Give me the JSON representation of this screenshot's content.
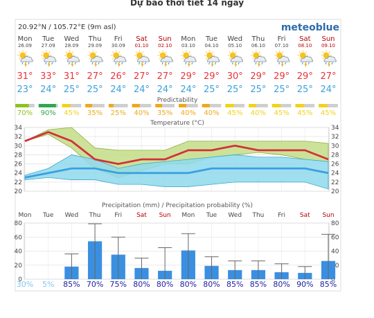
{
  "page_title": "Dự báo thời tiết 14 ngày",
  "location": "20.92°N / 105.72°E (9m asl)",
  "brand": "meteoblue",
  "colors": {
    "weekday": "#444444",
    "weekend": "#b80000",
    "max_temp": "#e8343a",
    "min_temp": "#3aa1db",
    "temp_line": "#d2313a",
    "temp_min_line": "#3a9fe0",
    "predictability_title": "#555555",
    "precip_bar": "#3b8fe0",
    "prob_good": "#1a1aa0",
    "prob_light": "#7fc7ef"
  },
  "days": [
    {
      "name": "Mon",
      "date": "26.09",
      "weekend": false,
      "icon": "sun-cloud-rain-thunder-icon",
      "max": "31°",
      "min": "23°",
      "pred": "70%",
      "pred_color": "#8ec21f"
    },
    {
      "name": "Tue",
      "date": "27.09",
      "weekend": false,
      "icon": "sun-cloud-rain-thunder-icon",
      "max": "33°",
      "min": "24°",
      "pred": "90%",
      "pred_color": "#2fa84f"
    },
    {
      "name": "Wed",
      "date": "28.09",
      "weekend": false,
      "icon": "sun-cloud-rain-thunder-icon",
      "max": "31°",
      "min": "25°",
      "pred": "45%",
      "pred_color": "#f2d21b"
    },
    {
      "name": "Thu",
      "date": "29.09",
      "weekend": false,
      "icon": "sun-cloud-rain-thunder-icon",
      "max": "27°",
      "min": "25°",
      "pred": "35%",
      "pred_color": "#f0a81a"
    },
    {
      "name": "Fri",
      "date": "30.09",
      "weekend": false,
      "icon": "sun-cloud-rain-thunder-icon",
      "max": "26°",
      "min": "24°",
      "pred": "25%",
      "pred_color": "#f0a81a"
    },
    {
      "name": "Sat",
      "date": "01.10",
      "weekend": true,
      "icon": "sun-cloud-rain-thunder-icon",
      "max": "27°",
      "min": "24°",
      "pred": "40%",
      "pred_color": "#f0a81a"
    },
    {
      "name": "Sun",
      "date": "02.10",
      "weekend": true,
      "icon": "sun-cloud-rain-thunder-icon",
      "max": "27°",
      "min": "24°",
      "pred": "35%",
      "pred_color": "#f0a81a"
    },
    {
      "name": "Mon",
      "date": "03.10",
      "weekend": false,
      "icon": "sun-cloud-rain-thunder-icon",
      "max": "29°",
      "min": "24°",
      "pred": "40%",
      "pred_color": "#f0a81a"
    },
    {
      "name": "Tue",
      "date": "04.10",
      "weekend": false,
      "icon": "sun-cloud-rain-thunder-icon",
      "max": "29°",
      "min": "25°",
      "pred": "40%",
      "pred_color": "#f0a81a"
    },
    {
      "name": "Wed",
      "date": "05.10",
      "weekend": false,
      "icon": "sun-cloud-rain-thunder-icon",
      "max": "30°",
      "min": "25°",
      "pred": "45%",
      "pred_color": "#f2d21b"
    },
    {
      "name": "Thu",
      "date": "06.10",
      "weekend": false,
      "icon": "sun-cloud-rain-thunder-icon",
      "max": "29°",
      "min": "25°",
      "pred": "40%",
      "pred_color": "#f2d21b"
    },
    {
      "name": "Fri",
      "date": "07.10",
      "weekend": false,
      "icon": "sun-cloud-rain-thunder-icon",
      "max": "29°",
      "min": "25°",
      "pred": "45%",
      "pred_color": "#f2d21b"
    },
    {
      "name": "Sat",
      "date": "08.10",
      "weekend": true,
      "icon": "sun-cloud-rain-thunder-icon",
      "max": "29°",
      "min": "25°",
      "pred": "45%",
      "pred_color": "#f2d21b"
    },
    {
      "name": "Sun",
      "date": "09.10",
      "weekend": true,
      "icon": "sun-cloud-rain-thunder-icon",
      "max": "27°",
      "min": "24°",
      "pred": "45%",
      "pred_color": "#f2d21b"
    }
  ],
  "chart_data": [
    {
      "type": "bar",
      "title": "Predictability",
      "categories": [
        "26.09",
        "27.09",
        "28.09",
        "29.09",
        "30.09",
        "01.10",
        "02.10",
        "03.10",
        "04.10",
        "05.10",
        "06.10",
        "07.10",
        "08.10",
        "09.10"
      ],
      "values": [
        70,
        90,
        45,
        35,
        25,
        40,
        35,
        40,
        40,
        45,
        40,
        45,
        45,
        45
      ],
      "ylim": [
        0,
        100
      ]
    },
    {
      "type": "area",
      "title": "Temperature (°C)",
      "categories": [
        "Mon",
        "Tue",
        "Wed",
        "Thu",
        "Fri",
        "Sat",
        "Sun",
        "Mon",
        "Tue",
        "Wed",
        "Thu",
        "Fri",
        "Sat",
        "Sun"
      ],
      "ylim": [
        20,
        34
      ],
      "yticks": [
        20,
        22,
        24,
        26,
        28,
        30,
        32,
        34
      ],
      "grid": true,
      "series": [
        {
          "values": [
            31,
            33,
            31,
            27,
            26,
            27,
            27,
            29,
            29,
            30,
            29,
            29,
            29,
            27
          ]
        },
        {
          "values": [
            23,
            24,
            25,
            25,
            24,
            24,
            24,
            24,
            25,
            25,
            25,
            25,
            25,
            24
          ]
        }
      ],
      "max_band": {
        "upper": [
          31,
          33.5,
          34,
          29.5,
          29,
          29,
          29,
          31,
          31,
          31,
          31,
          31,
          31,
          30.5
        ],
        "lower": [
          31,
          32.5,
          29.5,
          25,
          23,
          24.5,
          26,
          26,
          27.5,
          28,
          28.5,
          28,
          27,
          26.5
        ]
      },
      "min_band": {
        "upper": [
          23.5,
          25,
          28,
          27,
          25,
          26,
          26.5,
          27,
          27.5,
          28,
          27.5,
          27.5,
          27,
          26.5
        ],
        "lower": [
          22.5,
          23,
          22.5,
          22.5,
          21.5,
          21.5,
          21,
          21,
          21.5,
          22,
          22,
          22,
          22,
          20.5
        ]
      }
    },
    {
      "type": "bar",
      "title": "Precipitation (mm) / Precipitation probability (%)",
      "categories": [
        "Mon",
        "Tue",
        "Wed",
        "Thu",
        "Fri",
        "Sat",
        "Sun",
        "Mon",
        "Tue",
        "Wed",
        "Thu",
        "Fri",
        "Sat",
        "Sun"
      ],
      "ylim": [
        0,
        80
      ],
      "yticks": [
        0,
        20,
        40,
        60,
        80
      ],
      "grid": true,
      "values": [
        0,
        0,
        18,
        54,
        35,
        16,
        12,
        41,
        19,
        13,
        13,
        10,
        9,
        26
      ],
      "range_high": [
        0,
        0,
        36,
        79,
        60,
        30,
        45,
        65,
        32,
        26,
        26,
        22,
        18,
        64
      ],
      "range_low": [
        0,
        0,
        0,
        0,
        0,
        0,
        0,
        0,
        0,
        0,
        0,
        0,
        0,
        0
      ],
      "probability": [
        "30%",
        "5%",
        "85%",
        "70%",
        "75%",
        "80%",
        "80%",
        "80%",
        "80%",
        "85%",
        "85%",
        "80%",
        "90%",
        "85%"
      ],
      "probability_light": [
        true,
        true,
        false,
        false,
        false,
        false,
        false,
        false,
        false,
        false,
        false,
        false,
        false,
        false
      ]
    }
  ]
}
